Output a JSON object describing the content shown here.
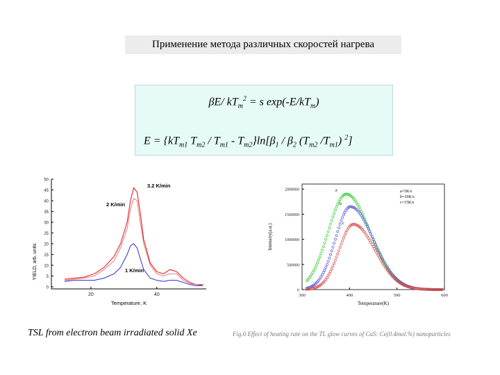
{
  "slide": {
    "title": "Применение метода различных скоростей нагрева",
    "formula1": {
      "p1": "βE/ kT",
      "s1": "m",
      "sup1": "2",
      "p2": " = s exp(-E/kT",
      "s2": "m",
      "p3": ")"
    },
    "formula2": {
      "p1": "E = {kT",
      "s1": "m1",
      "p2": " T",
      "s2": "m2",
      "p3": " / T",
      "s3": "m1",
      "p4": " - T",
      "s4": "m2",
      "p5": "}ln[β",
      "s5": "1",
      "p6": " / β",
      "s6": "2",
      "p7": " (T",
      "s7": "m2",
      "p8": " /T",
      "s8": "m1",
      "p9": ") ",
      "sup9": "2",
      "p10": "]"
    },
    "caption_left": "TSL from electron beam irradiated solid Xe",
    "caption_right": "Fig.6 Effect of heating rate on the TL glow curves of CaS: Ce(0.4mol.%) nanoparticles"
  },
  "chart_data": [
    {
      "type": "line",
      "xlabel": "Temperature, K",
      "ylabel": "YIELD, arb. units",
      "xticks": [
        20,
        40
      ],
      "yticks": [
        0,
        5,
        10,
        15,
        20,
        25,
        30,
        35,
        40,
        45,
        50
      ],
      "xlim": [
        8,
        55
      ],
      "ylim": [
        -1,
        50
      ],
      "annotations": [
        "3.2 K/min",
        "2 K/min",
        "1 K/min"
      ],
      "series": [
        {
          "name": "3.2 K/min",
          "color": "#e01010",
          "x": [
            12,
            15,
            18,
            21,
            24,
            27,
            29,
            31,
            32,
            33,
            34,
            35,
            36,
            38,
            40,
            42,
            44,
            46,
            48,
            50,
            52,
            54
          ],
          "y": [
            3.5,
            4,
            4.5,
            6,
            9,
            14,
            20,
            30,
            40,
            46,
            44,
            34,
            22,
            11,
            7,
            6,
            8,
            7,
            4,
            2,
            1,
            1
          ]
        },
        {
          "name": "2 K/min",
          "color": "#e87878",
          "x": [
            12,
            15,
            18,
            21,
            24,
            27,
            29,
            31,
            32,
            33,
            34,
            35,
            36,
            38,
            40,
            42,
            44,
            46,
            48,
            50,
            52,
            54
          ],
          "y": [
            3,
            3.5,
            4,
            5,
            8,
            12,
            18,
            27,
            36,
            41,
            40,
            30,
            20,
            10,
            6,
            5,
            6,
            6,
            3,
            1.5,
            1,
            0.5
          ]
        },
        {
          "name": "1 K/min",
          "color": "#2c2ccc",
          "x": [
            12,
            15,
            18,
            21,
            24,
            27,
            29,
            31,
            32,
            33,
            34,
            35,
            36,
            38,
            40,
            42,
            44,
            46,
            48,
            50,
            52,
            54
          ],
          "y": [
            2.5,
            3,
            3,
            3,
            4,
            6,
            9,
            15,
            19,
            20,
            18,
            13,
            8,
            4,
            3,
            2.5,
            3,
            3,
            2,
            1,
            0.5,
            0.5
          ]
        }
      ]
    },
    {
      "type": "scatter",
      "xlabel": "Temperature(K)",
      "ylabel": "Intensity(a.u.)",
      "xticks": [
        300,
        400,
        500,
        600
      ],
      "yticks": [
        0,
        500000,
        1000000,
        1500000,
        2000000
      ],
      "ytick_labels": [
        "0",
        "500000",
        "1000000",
        "1500000",
        "2000000"
      ],
      "xlim": [
        300,
        600
      ],
      "ylim": [
        0,
        2100000
      ],
      "legend": [
        "a=5K/s",
        "b=10K/s",
        "c=15K/s"
      ],
      "legend_position": "top-right",
      "point_labels": [
        "a",
        "b",
        "c"
      ],
      "series": [
        {
          "name": "a",
          "color": "#2fcf2f",
          "peak_x": 393,
          "peak_y": 1900000,
          "sigma_left": 38,
          "sigma_right": 50
        },
        {
          "name": "b",
          "color": "#5656d8",
          "peak_x": 402,
          "peak_y": 1650000,
          "sigma_left": 32,
          "sigma_right": 48
        },
        {
          "name": "c",
          "color": "#d84a4a",
          "peak_x": 408,
          "peak_y": 1300000,
          "sigma_left": 30,
          "sigma_right": 46
        }
      ]
    }
  ]
}
